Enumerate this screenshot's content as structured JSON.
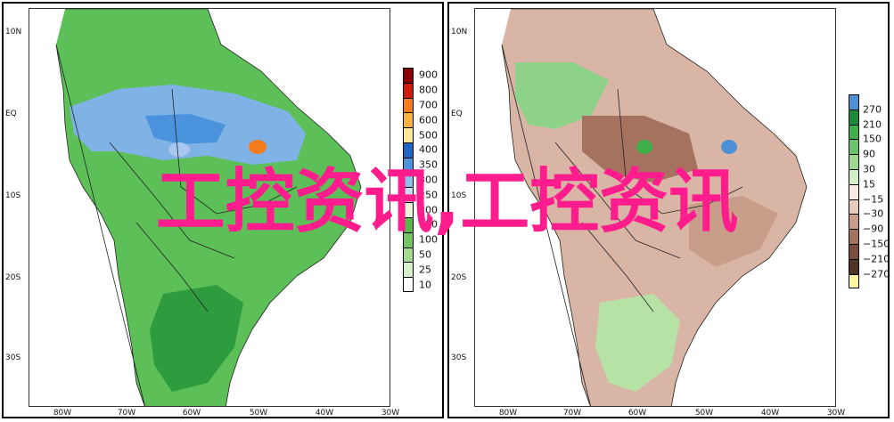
{
  "watermark": "工控资讯,工控资讯",
  "lat_labels": [
    "10N",
    "EQ",
    "10S",
    "20S",
    "30S"
  ],
  "lon_labels": [
    "80W",
    "70W",
    "60W",
    "50W",
    "40W",
    "30W"
  ],
  "left_panel": {
    "legend": {
      "colors": [
        "#8b0000",
        "#d11a0e",
        "#f57c1f",
        "#fbb13c",
        "#ffe79a",
        "#1f64c7",
        "#4b94dd",
        "#8cc0ec",
        "#c5def3",
        "#e6f4dc",
        "#54b948",
        "#74c665",
        "#a3dc8d",
        "#d6f1c7",
        "#ffffff"
      ],
      "labels": [
        "900",
        "800",
        "700",
        "600",
        "500",
        "400",
        "350",
        "300",
        "250",
        "200",
        "150",
        "100",
        "50",
        "25",
        "10"
      ]
    }
  },
  "right_panel": {
    "legend": {
      "colors": [
        "#4d90d6",
        "#1b8a3a",
        "#3fb04a",
        "#69c46b",
        "#9fd98f",
        "#d3efc6",
        "#f7ece5",
        "#e6cbbd",
        "#c89d8a",
        "#a67260",
        "#7a4d3f",
        "#513426",
        "#fff59e"
      ],
      "labels": [
        "270",
        "210",
        "150",
        "90",
        "30",
        "15",
        "−15",
        "−30",
        "−90",
        "−150",
        "−210",
        "−270"
      ]
    }
  }
}
